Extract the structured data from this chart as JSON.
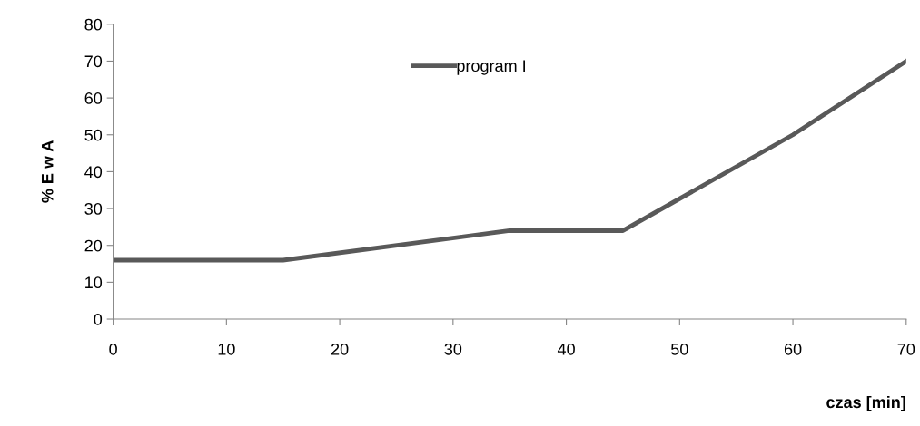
{
  "chart_data": {
    "type": "line",
    "xlabel": "czas [min]",
    "ylabel": "% E w A",
    "x": [
      0,
      15,
      35,
      45,
      60,
      70
    ],
    "series": [
      {
        "name": "program I",
        "color": "#595959",
        "values": [
          16,
          16,
          24,
          24,
          50,
          70
        ]
      }
    ],
    "xlim": [
      0,
      70
    ],
    "xticks": [
      0,
      10,
      20,
      30,
      40,
      50,
      60,
      70
    ],
    "ylim": [
      0,
      80
    ],
    "yticks": [
      0,
      10,
      20,
      30,
      40,
      50,
      60,
      70,
      80
    ],
    "grid": false,
    "legend": "top",
    "marker": "none",
    "line_style": "solid"
  }
}
